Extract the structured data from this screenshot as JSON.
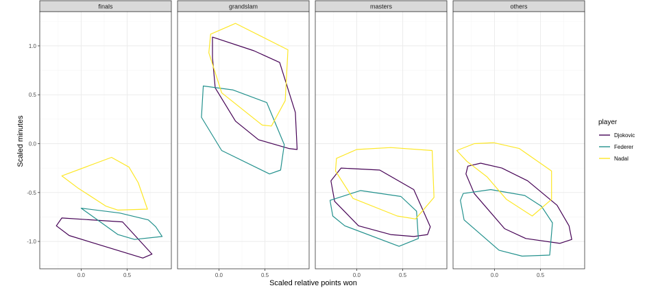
{
  "chart_data": {
    "type": "line",
    "xlabel": "Scaled relative points won",
    "ylabel": "Scaled minutes",
    "xlim": [
      -0.45,
      0.98
    ],
    "ylim": [
      -1.28,
      1.35
    ],
    "x_ticks": [
      0.0,
      0.5
    ],
    "x_tick_labels": [
      "0.0",
      "0.5"
    ],
    "y_ticks": [
      -1.0,
      -0.5,
      0.0,
      0.5,
      1.0
    ],
    "y_tick_labels": [
      "-1.0",
      "-0.5",
      "0.0",
      "0.5",
      "1.0"
    ],
    "grid": true,
    "legend": {
      "title": "player",
      "position": "right"
    },
    "colors": {
      "Djokovic": "#440154",
      "Federer": "#21908C",
      "Nadal": "#FDE725"
    },
    "panels": [
      {
        "title": "finals",
        "series": [
          {
            "name": "Djokovic",
            "points": [
              [
                -0.27,
                -0.84
              ],
              [
                -0.21,
                -0.76
              ],
              [
                0.45,
                -0.8
              ],
              [
                0.77,
                -1.13
              ],
              [
                0.67,
                -1.17
              ],
              [
                -0.13,
                -0.94
              ]
            ]
          },
          {
            "name": "Federer",
            "points": [
              [
                0.0,
                -0.66
              ],
              [
                0.42,
                -0.71
              ],
              [
                0.73,
                -0.78
              ],
              [
                0.81,
                -0.85
              ],
              [
                0.88,
                -0.95
              ],
              [
                0.58,
                -0.98
              ],
              [
                0.4,
                -0.93
              ]
            ]
          },
          {
            "name": "Nadal",
            "points": [
              [
                -0.21,
                -0.33
              ],
              [
                0.33,
                -0.14
              ],
              [
                0.52,
                -0.24
              ],
              [
                0.62,
                -0.4
              ],
              [
                0.72,
                -0.67
              ],
              [
                0.4,
                -0.68
              ],
              [
                0.27,
                -0.64
              ],
              [
                -0.04,
                -0.45
              ]
            ]
          }
        ]
      },
      {
        "title": "grandslam",
        "series": [
          {
            "name": "Djokovic",
            "points": [
              [
                -0.07,
                1.09
              ],
              [
                0.38,
                0.95
              ],
              [
                0.66,
                0.83
              ],
              [
                0.83,
                0.32
              ],
              [
                0.85,
                -0.06
              ],
              [
                0.76,
                -0.05
              ],
              [
                0.43,
                0.04
              ],
              [
                0.18,
                0.23
              ],
              [
                -0.04,
                0.57
              ],
              [
                -0.07,
                0.88
              ]
            ]
          },
          {
            "name": "Federer",
            "points": [
              [
                -0.17,
                0.59
              ],
              [
                0.15,
                0.55
              ],
              [
                0.52,
                0.42
              ],
              [
                0.71,
                -0.01
              ],
              [
                0.67,
                -0.27
              ],
              [
                0.55,
                -0.31
              ],
              [
                0.03,
                -0.07
              ],
              [
                -0.19,
                0.27
              ]
            ]
          },
          {
            "name": "Nadal",
            "points": [
              [
                -0.09,
                1.12
              ],
              [
                0.18,
                1.23
              ],
              [
                0.75,
                0.96
              ],
              [
                0.72,
                0.44
              ],
              [
                0.57,
                0.18
              ],
              [
                0.47,
                0.19
              ],
              [
                0.03,
                0.52
              ],
              [
                -0.11,
                0.93
              ]
            ]
          }
        ]
      },
      {
        "title": "masters",
        "series": [
          {
            "name": "Djokovic",
            "points": [
              [
                -0.17,
                -0.25
              ],
              [
                0.25,
                -0.27
              ],
              [
                0.62,
                -0.47
              ],
              [
                0.8,
                -0.85
              ],
              [
                0.77,
                -0.93
              ],
              [
                0.62,
                -0.95
              ],
              [
                0.37,
                -0.93
              ],
              [
                0.02,
                -0.84
              ],
              [
                -0.24,
                -0.59
              ],
              [
                -0.28,
                -0.38
              ]
            ]
          },
          {
            "name": "Federer",
            "points": [
              [
                -0.29,
                -0.58
              ],
              [
                0.04,
                -0.48
              ],
              [
                0.48,
                -0.54
              ],
              [
                0.65,
                -0.69
              ],
              [
                0.67,
                -0.97
              ],
              [
                0.46,
                -1.05
              ],
              [
                -0.13,
                -0.84
              ],
              [
                -0.26,
                -0.74
              ]
            ]
          },
          {
            "name": "Nadal",
            "points": [
              [
                -0.22,
                -0.15
              ],
              [
                0.0,
                -0.06
              ],
              [
                0.37,
                -0.04
              ],
              [
                0.82,
                -0.07
              ],
              [
                0.84,
                -0.55
              ],
              [
                0.64,
                -0.77
              ],
              [
                0.44,
                -0.74
              ],
              [
                -0.04,
                -0.56
              ],
              [
                -0.23,
                -0.28
              ]
            ]
          }
        ]
      },
      {
        "title": "others",
        "series": [
          {
            "name": "Djokovic",
            "points": [
              [
                -0.29,
                -0.23
              ],
              [
                -0.15,
                -0.2
              ],
              [
                0.08,
                -0.25
              ],
              [
                0.36,
                -0.38
              ],
              [
                0.68,
                -0.63
              ],
              [
                0.81,
                -0.84
              ],
              [
                0.84,
                -0.98
              ],
              [
                0.71,
                -1.02
              ],
              [
                0.34,
                -0.97
              ],
              [
                0.11,
                -0.87
              ],
              [
                -0.22,
                -0.51
              ],
              [
                -0.31,
                -0.31
              ]
            ]
          },
          {
            "name": "Federer",
            "points": [
              [
                -0.34,
                -0.51
              ],
              [
                -0.04,
                -0.47
              ],
              [
                0.33,
                -0.53
              ],
              [
                0.51,
                -0.64
              ],
              [
                0.63,
                -0.81
              ],
              [
                0.6,
                -1.14
              ],
              [
                0.3,
                -1.15
              ],
              [
                0.05,
                -1.09
              ],
              [
                -0.33,
                -0.78
              ],
              [
                -0.37,
                -0.58
              ]
            ]
          },
          {
            "name": "Nadal",
            "points": [
              [
                -0.41,
                -0.07
              ],
              [
                -0.22,
                0.0
              ],
              [
                -0.01,
                0.01
              ],
              [
                0.27,
                -0.05
              ],
              [
                0.62,
                -0.28
              ],
              [
                0.62,
                -0.57
              ],
              [
                0.41,
                -0.74
              ],
              [
                0.13,
                -0.57
              ],
              [
                -0.08,
                -0.34
              ],
              [
                -0.3,
                -0.18
              ]
            ]
          }
        ]
      }
    ]
  }
}
